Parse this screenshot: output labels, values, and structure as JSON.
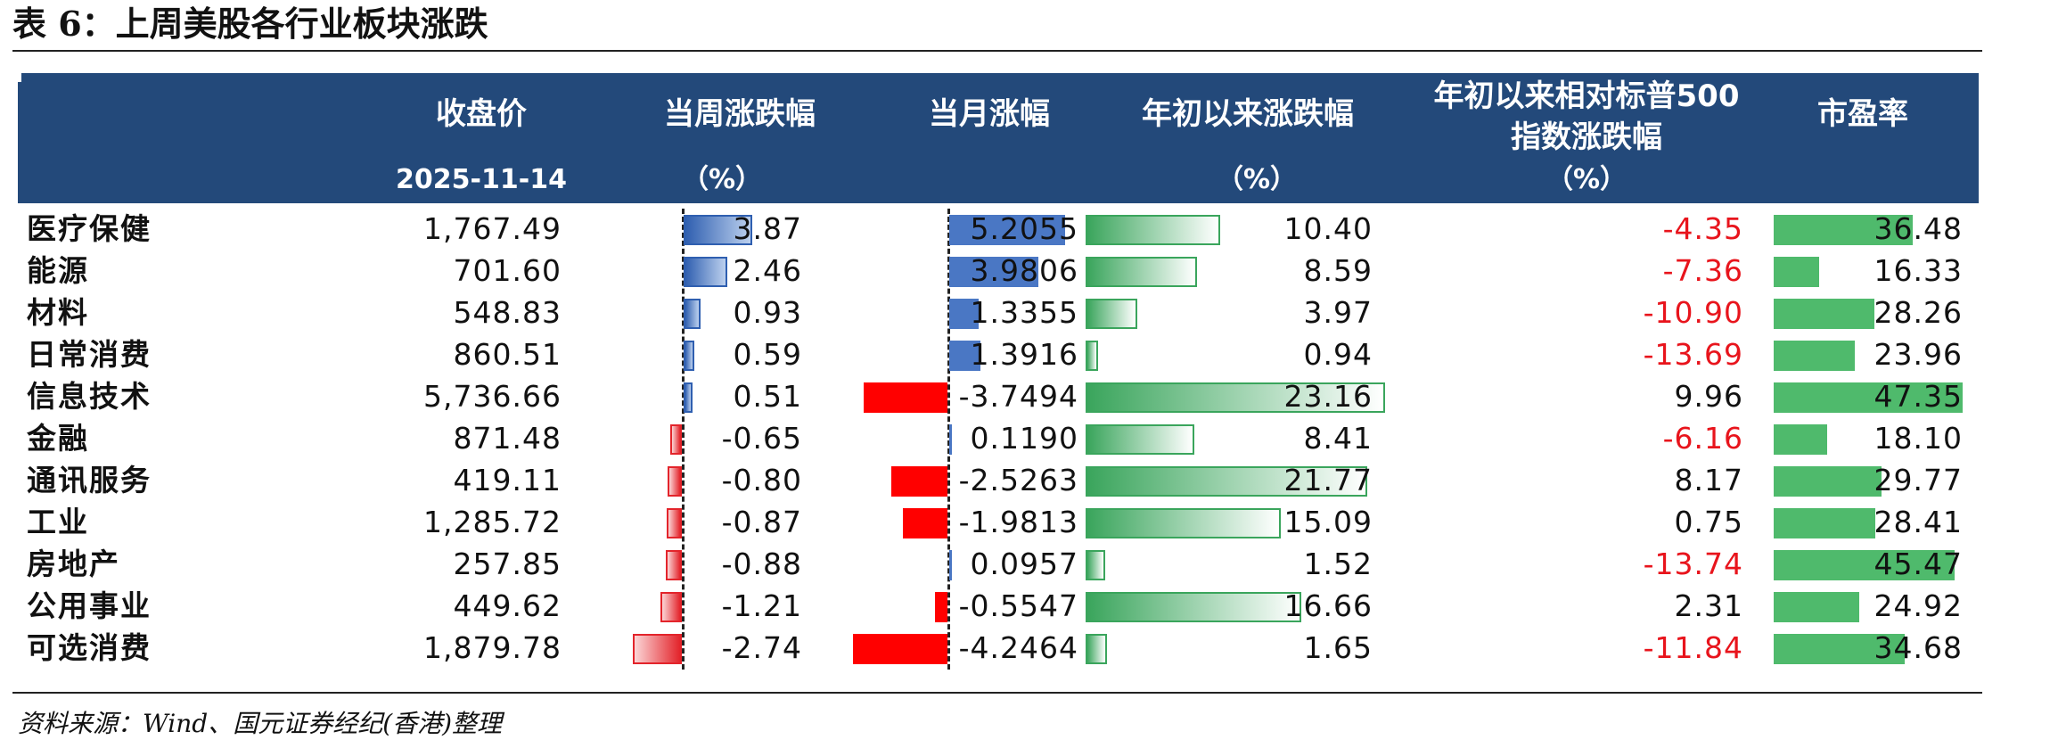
{
  "title": "表 6：上周美股各行业板块涨跌",
  "headers": {
    "close": {
      "label": "收盘价",
      "sub": "2025-11-14"
    },
    "week": {
      "label": "当周涨跌幅",
      "sub": "（%）"
    },
    "month": {
      "label": "当月涨幅",
      "sub": ""
    },
    "ytd": {
      "label": "年初以来涨跌幅",
      "sub": "（%）"
    },
    "rel": {
      "label1": "年初以来相对标普500",
      "label2": "指数涨跌幅",
      "sub": "（%）"
    },
    "pe": {
      "label": "市盈率",
      "sub": ""
    }
  },
  "rows": [
    {
      "name": "医疗保健",
      "close": "1,767.49",
      "week": "3.87",
      "month": "5.2055",
      "ytd": "10.40",
      "rel": "-4.35",
      "pe": "36.48"
    },
    {
      "name": "能源",
      "close": "701.60",
      "week": "2.46",
      "month": "3.9806",
      "ytd": "8.59",
      "rel": "-7.36",
      "pe": "16.33"
    },
    {
      "name": "材料",
      "close": "548.83",
      "week": "0.93",
      "month": "1.3355",
      "ytd": "3.97",
      "rel": "-10.90",
      "pe": "28.26"
    },
    {
      "name": "日常消费",
      "close": "860.51",
      "week": "0.59",
      "month": "1.3916",
      "ytd": "0.94",
      "rel": "-13.69",
      "pe": "23.96"
    },
    {
      "name": "信息技术",
      "close": "5,736.66",
      "week": "0.51",
      "month": "-3.7494",
      "ytd": "23.16",
      "rel": "9.96",
      "pe": "47.35"
    },
    {
      "name": "金融",
      "close": "871.48",
      "week": "-0.65",
      "month": "0.1190",
      "ytd": "8.41",
      "rel": "-6.16",
      "pe": "18.10"
    },
    {
      "name": "通讯服务",
      "close": "419.11",
      "week": "-0.80",
      "month": "-2.5263",
      "ytd": "21.77",
      "rel": "8.17",
      "pe": "29.77"
    },
    {
      "name": "工业",
      "close": "1,285.72",
      "week": "-0.87",
      "month": "-1.9813",
      "ytd": "15.09",
      "rel": "0.75",
      "pe": "28.41"
    },
    {
      "name": "房地产",
      "close": "257.85",
      "week": "-0.88",
      "month": "0.0957",
      "ytd": "1.52",
      "rel": "-13.74",
      "pe": "45.47"
    },
    {
      "name": "公用事业",
      "close": "449.62",
      "week": "-1.21",
      "month": "-0.5547",
      "ytd": "16.66",
      "rel": "2.31",
      "pe": "24.92"
    },
    {
      "name": "可选消费",
      "close": "1,879.78",
      "week": "-2.74",
      "month": "-4.2464",
      "ytd": "1.65",
      "rel": "-11.84",
      "pe": "34.68"
    }
  ],
  "colors": {
    "header_bg": "#23497a",
    "negative_text": "#e8141c",
    "blue_bar": "#2f5fb0",
    "red_bar": "#ff0000",
    "green_bar": "#3aa55c"
  },
  "source": "资料来源：Wind、国元证券经纪(香港)整理"
}
